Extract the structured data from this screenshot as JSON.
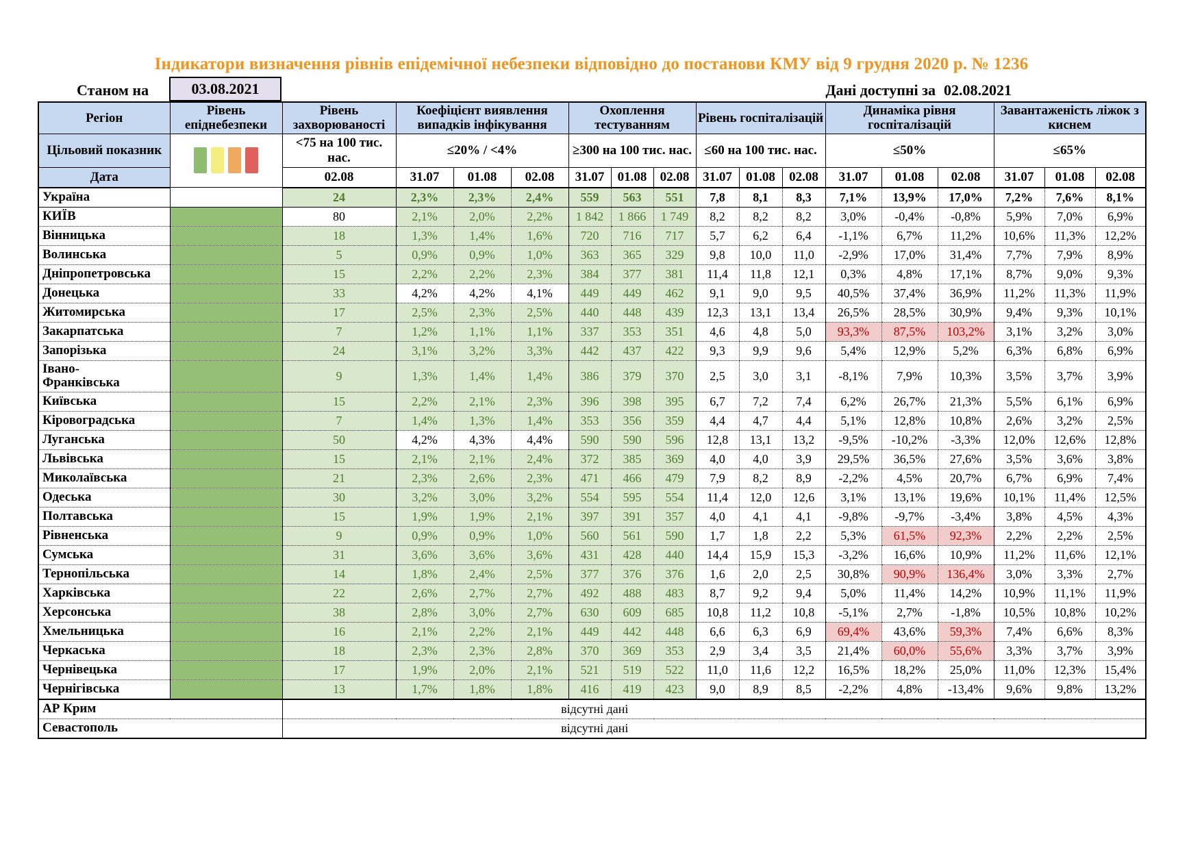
{
  "page": {
    "title": "Індикатори визначення рівнів епідемічної небезпеки відповідно до постанови КМУ від 9 грудня 2020 р. № 1236",
    "as_of_label": "Станом на",
    "as_of_date": "03.08.2021",
    "available_label": "Дані доступні за",
    "available_date": "02.08.2021"
  },
  "header": {
    "region": "Регіон",
    "level": "Рівень епіднебезпеки",
    "target_label": "Цільовий показник",
    "date_label": "Дата",
    "legend_colors": [
      "#8fbd6f",
      "#f3ee7d",
      "#f0a95f",
      "#e0615c"
    ],
    "legend_names": [
      "green",
      "yellow",
      "orange",
      "red"
    ],
    "groups": [
      {
        "label": "Рівень захворюваності",
        "target": "<75 на 100 тис. нас.",
        "dates": [
          "02.08"
        ]
      },
      {
        "label": "Коефіцієнт виявлення випадків інфікування",
        "target": "≤20% / <4%",
        "dates": [
          "31.07",
          "01.08",
          "02.08"
        ]
      },
      {
        "label": "Охоплення тестуванням",
        "target": "≥300 на 100 тис. нас.",
        "dates": [
          "31.07",
          "01.08",
          "02.08"
        ]
      },
      {
        "label": "Рівень госпіталізацій",
        "target": "≤60 на 100 тис. нас.",
        "dates": [
          "31.07",
          "01.08",
          "02.08"
        ]
      },
      {
        "label": "Динаміка рівня госпіталізацій",
        "target": "≤50%",
        "dates": [
          "31.07",
          "01.08",
          "02.08"
        ]
      },
      {
        "label": "Завантаженість ліжок з киснем",
        "target": "≤65%",
        "dates": [
          "31.07",
          "01.08",
          "02.08"
        ]
      }
    ]
  },
  "no_data_text": "відсутні дані",
  "rows": [
    {
      "name": "Україна",
      "bold": true,
      "sb1": true,
      "level": null,
      "inc": "24",
      "det": [
        "2,3%",
        "2,3%",
        "2,4%"
      ],
      "test": [
        "559",
        "563",
        "551"
      ],
      "hosp": [
        "7,8",
        "8,1",
        "8,3"
      ],
      "dyn": [
        "7,1%",
        "13,9%",
        "17,0%"
      ],
      "bed": [
        "7,2%",
        "7,6%",
        "8,1%"
      ]
    },
    {
      "name": "КИЇВ",
      "level": "green",
      "inc": "80",
      "inc_s": "w",
      "det": [
        "2,1%",
        "2,0%",
        "2,2%"
      ],
      "test": [
        "1 842",
        "1 866",
        "1 749"
      ],
      "hosp": [
        "8,2",
        "8,2",
        "8,2"
      ],
      "dyn": [
        "3,0%",
        "-0,4%",
        "-0,8%"
      ],
      "bed": [
        "5,9%",
        "7,0%",
        "6,9%"
      ]
    },
    {
      "name": "Вінницька",
      "level": "green",
      "inc": "18",
      "det": [
        "1,3%",
        "1,4%",
        "1,6%"
      ],
      "test": [
        "720",
        "716",
        "717"
      ],
      "hosp": [
        "5,7",
        "6,2",
        "6,4"
      ],
      "dyn": [
        "-1,1%",
        "6,7%",
        "11,2%"
      ],
      "bed": [
        "10,6%",
        "11,3%",
        "12,2%"
      ]
    },
    {
      "name": "Волинська",
      "level": "green",
      "inc": "5",
      "det": [
        "0,9%",
        "0,9%",
        "1,0%"
      ],
      "test": [
        "363",
        "365",
        "329"
      ],
      "hosp": [
        "9,8",
        "10,0",
        "11,0"
      ],
      "dyn": [
        "-2,9%",
        "17,0%",
        "31,4%"
      ],
      "bed": [
        "7,7%",
        "7,9%",
        "8,9%"
      ]
    },
    {
      "name": "Дніпропетровська",
      "level": "green",
      "inc": "15",
      "det": [
        "2,2%",
        "2,2%",
        "2,3%"
      ],
      "test": [
        "384",
        "377",
        "381"
      ],
      "hosp": [
        "11,4",
        "11,8",
        "12,1"
      ],
      "dyn": [
        "0,3%",
        "4,8%",
        "17,1%"
      ],
      "bed": [
        "8,7%",
        "9,0%",
        "9,3%"
      ]
    },
    {
      "name": "Донецька",
      "level": "green",
      "inc": "33",
      "det": [
        "4,2%",
        "4,2%",
        "4,1%"
      ],
      "det_s": [
        "w",
        "w",
        "w"
      ],
      "test": [
        "449",
        "449",
        "462"
      ],
      "hosp": [
        "9,1",
        "9,0",
        "9,5"
      ],
      "dyn": [
        "40,5%",
        "37,4%",
        "36,9%"
      ],
      "bed": [
        "11,2%",
        "11,3%",
        "11,9%"
      ]
    },
    {
      "name": "Житомирська",
      "level": "green",
      "inc": "17",
      "det": [
        "2,5%",
        "2,3%",
        "2,5%"
      ],
      "test": [
        "440",
        "448",
        "439"
      ],
      "hosp": [
        "12,3",
        "13,1",
        "13,4"
      ],
      "dyn": [
        "26,5%",
        "28,5%",
        "30,9%"
      ],
      "bed": [
        "9,4%",
        "9,3%",
        "10,1%"
      ]
    },
    {
      "name": "Закарпатська",
      "level": "green",
      "inc": "7",
      "det": [
        "1,2%",
        "1,1%",
        "1,1%"
      ],
      "test": [
        "337",
        "353",
        "351"
      ],
      "hosp": [
        "4,6",
        "4,8",
        "5,0"
      ],
      "dyn": [
        "93,3%",
        "87,5%",
        "103,2%"
      ],
      "dyn_s": [
        "r",
        "r",
        "r"
      ],
      "bed": [
        "3,1%",
        "3,2%",
        "3,0%"
      ]
    },
    {
      "name": "Запорізька",
      "level": "green",
      "inc": "24",
      "det": [
        "3,1%",
        "3,2%",
        "3,3%"
      ],
      "test": [
        "442",
        "437",
        "422"
      ],
      "hosp": [
        "9,3",
        "9,9",
        "9,6"
      ],
      "dyn": [
        "5,4%",
        "12,9%",
        "5,2%"
      ],
      "bed": [
        "6,3%",
        "6,8%",
        "6,9%"
      ]
    },
    {
      "name": "Івано-\nФранківська",
      "tall": true,
      "level": "green",
      "inc": "9",
      "det": [
        "1,3%",
        "1,4%",
        "1,4%"
      ],
      "test": [
        "386",
        "379",
        "370"
      ],
      "hosp": [
        "2,5",
        "3,0",
        "3,1"
      ],
      "dyn": [
        "-8,1%",
        "7,9%",
        "10,3%"
      ],
      "bed": [
        "3,5%",
        "3,7%",
        "3,9%"
      ]
    },
    {
      "name": "Київська",
      "level": "green",
      "inc": "15",
      "det": [
        "2,2%",
        "2,1%",
        "2,3%"
      ],
      "test": [
        "396",
        "398",
        "395"
      ],
      "hosp": [
        "6,7",
        "7,2",
        "7,4"
      ],
      "dyn": [
        "6,2%",
        "26,7%",
        "21,3%"
      ],
      "bed": [
        "5,5%",
        "6,1%",
        "6,9%"
      ]
    },
    {
      "name": "Кіровоградська",
      "level": "green",
      "inc": "7",
      "det": [
        "1,4%",
        "1,3%",
        "1,4%"
      ],
      "test": [
        "353",
        "356",
        "359"
      ],
      "hosp": [
        "4,4",
        "4,7",
        "4,4"
      ],
      "dyn": [
        "5,1%",
        "12,8%",
        "10,8%"
      ],
      "bed": [
        "2,6%",
        "3,2%",
        "2,5%"
      ]
    },
    {
      "name": "Луганська",
      "level": "green",
      "inc": "50",
      "det": [
        "4,2%",
        "4,3%",
        "4,4%"
      ],
      "det_s": [
        "w",
        "w",
        "w"
      ],
      "test": [
        "590",
        "590",
        "596"
      ],
      "hosp": [
        "12,8",
        "13,1",
        "13,2"
      ],
      "dyn": [
        "-9,5%",
        "-10,2%",
        "-3,3%"
      ],
      "bed": [
        "12,0%",
        "12,6%",
        "12,8%"
      ]
    },
    {
      "name": "Львівська",
      "level": "green",
      "inc": "15",
      "det": [
        "2,1%",
        "2,1%",
        "2,4%"
      ],
      "test": [
        "372",
        "385",
        "369"
      ],
      "hosp": [
        "4,0",
        "4,0",
        "3,9"
      ],
      "dyn": [
        "29,5%",
        "36,5%",
        "27,6%"
      ],
      "bed": [
        "3,5%",
        "3,6%",
        "3,8%"
      ]
    },
    {
      "name": "Миколаївська",
      "level": "green",
      "inc": "21",
      "det": [
        "2,3%",
        "2,6%",
        "2,3%"
      ],
      "test": [
        "471",
        "466",
        "479"
      ],
      "hosp": [
        "7,9",
        "8,2",
        "8,9"
      ],
      "dyn": [
        "-2,2%",
        "4,5%",
        "20,7%"
      ],
      "bed": [
        "6,7%",
        "6,9%",
        "7,4%"
      ]
    },
    {
      "name": "Одеська",
      "level": "green",
      "inc": "30",
      "det": [
        "3,2%",
        "3,0%",
        "3,2%"
      ],
      "test": [
        "554",
        "595",
        "554"
      ],
      "hosp": [
        "11,4",
        "12,0",
        "12,6"
      ],
      "dyn": [
        "3,1%",
        "13,1%",
        "19,6%"
      ],
      "bed": [
        "10,1%",
        "11,4%",
        "12,5%"
      ]
    },
    {
      "name": "Полтавська",
      "level": "green",
      "inc": "15",
      "det": [
        "1,9%",
        "1,9%",
        "2,1%"
      ],
      "test": [
        "397",
        "391",
        "357"
      ],
      "hosp": [
        "4,0",
        "4,1",
        "4,1"
      ],
      "dyn": [
        "-9,8%",
        "-9,7%",
        "-3,4%"
      ],
      "bed": [
        "3,8%",
        "4,5%",
        "4,3%"
      ]
    },
    {
      "name": "Рівненська",
      "level": "green",
      "inc": "9",
      "det": [
        "0,9%",
        "0,9%",
        "1,0%"
      ],
      "test": [
        "560",
        "561",
        "590"
      ],
      "hosp": [
        "1,7",
        "1,8",
        "2,2"
      ],
      "dyn": [
        "5,3%",
        "61,5%",
        "92,3%"
      ],
      "dyn_s": [
        null,
        "r",
        "r"
      ],
      "bed": [
        "2,2%",
        "2,2%",
        "2,5%"
      ]
    },
    {
      "name": "Сумська",
      "level": "green",
      "inc": "31",
      "det": [
        "3,6%",
        "3,6%",
        "3,6%"
      ],
      "test": [
        "431",
        "428",
        "440"
      ],
      "hosp": [
        "14,4",
        "15,9",
        "15,3"
      ],
      "dyn": [
        "-3,2%",
        "16,6%",
        "10,9%"
      ],
      "bed": [
        "11,2%",
        "11,6%",
        "12,1%"
      ]
    },
    {
      "name": "Тернопільська",
      "level": "green",
      "inc": "14",
      "det": [
        "1,8%",
        "2,4%",
        "2,5%"
      ],
      "test": [
        "377",
        "376",
        "376"
      ],
      "hosp": [
        "1,6",
        "2,0",
        "2,5"
      ],
      "dyn": [
        "30,8%",
        "90,9%",
        "136,4%"
      ],
      "dyn_s": [
        null,
        "r",
        "r"
      ],
      "bed": [
        "3,0%",
        "3,3%",
        "2,7%"
      ]
    },
    {
      "name": "Харківська",
      "level": "green",
      "inc": "22",
      "det": [
        "2,6%",
        "2,7%",
        "2,7%"
      ],
      "test": [
        "492",
        "488",
        "483"
      ],
      "hosp": [
        "8,7",
        "9,2",
        "9,4"
      ],
      "dyn": [
        "5,0%",
        "11,4%",
        "14,2%"
      ],
      "bed": [
        "10,9%",
        "11,1%",
        "11,9%"
      ]
    },
    {
      "name": "Херсонська",
      "level": "green",
      "inc": "38",
      "det": [
        "2,8%",
        "3,0%",
        "2,7%"
      ],
      "test": [
        "630",
        "609",
        "685"
      ],
      "hosp": [
        "10,8",
        "11,2",
        "10,8"
      ],
      "dyn": [
        "-5,1%",
        "2,7%",
        "-1,8%"
      ],
      "bed": [
        "10,5%",
        "10,8%",
        "10,2%"
      ]
    },
    {
      "name": "Хмельницька",
      "level": "green",
      "inc": "16",
      "det": [
        "2,1%",
        "2,2%",
        "2,1%"
      ],
      "test": [
        "449",
        "442",
        "448"
      ],
      "hosp": [
        "6,6",
        "6,3",
        "6,9"
      ],
      "dyn": [
        "69,4%",
        "43,6%",
        "59,3%"
      ],
      "dyn_s": [
        "r",
        null,
        "r"
      ],
      "bed": [
        "7,4%",
        "6,6%",
        "8,3%"
      ]
    },
    {
      "name": "Черкаська",
      "level": "green",
      "inc": "18",
      "det": [
        "2,3%",
        "2,3%",
        "2,8%"
      ],
      "test": [
        "370",
        "369",
        "353"
      ],
      "hosp": [
        "2,9",
        "3,4",
        "3,5"
      ],
      "dyn": [
        "21,4%",
        "60,0%",
        "55,6%"
      ],
      "dyn_s": [
        null,
        "r",
        "r"
      ],
      "bed": [
        "3,3%",
        "3,7%",
        "3,9%"
      ]
    },
    {
      "name": "Чернівецька",
      "level": "green",
      "inc": "17",
      "det": [
        "1,9%",
        "2,0%",
        "2,1%"
      ],
      "test": [
        "521",
        "519",
        "522"
      ],
      "hosp": [
        "11,0",
        "11,6",
        "12,2"
      ],
      "dyn": [
        "16,5%",
        "18,2%",
        "25,0%"
      ],
      "bed": [
        "11,0%",
        "12,3%",
        "15,4%"
      ]
    },
    {
      "name": "Чернігівська",
      "sb2": true,
      "level": "green",
      "inc": "13",
      "det": [
        "1,7%",
        "1,8%",
        "1,8%"
      ],
      "test": [
        "416",
        "419",
        "423"
      ],
      "hosp": [
        "9,0",
        "8,9",
        "8,5"
      ],
      "dyn": [
        "-2,2%",
        "4,8%",
        "-13,4%"
      ],
      "bed": [
        "9,6%",
        "9,8%",
        "13,2%"
      ]
    },
    {
      "name": "АР Крим",
      "no_data": true
    },
    {
      "name": "Севастополь",
      "no_data": true
    }
  ]
}
